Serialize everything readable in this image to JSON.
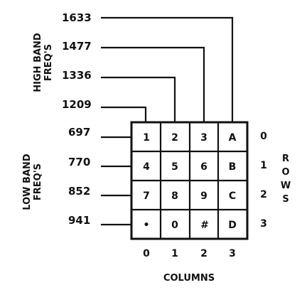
{
  "high_band": {
    "label_line1": "HIGH BAND",
    "label_line2": "FREQ'S",
    "freqs": [
      "1209",
      "1336",
      "1477",
      "1633"
    ]
  },
  "low_band": {
    "label_line1": "LOW BAND",
    "label_line2": "FREQ'S",
    "freqs": [
      "697",
      "770",
      "852",
      "941"
    ]
  },
  "keypad": {
    "keys": [
      [
        "1",
        "2",
        "3",
        "A"
      ],
      [
        "4",
        "5",
        "6",
        "B"
      ],
      [
        "7",
        "8",
        "9",
        "C"
      ],
      [
        "•",
        "0",
        "#",
        "D"
      ]
    ]
  },
  "rows": {
    "label": "ROWS",
    "letters": [
      "R",
      "O",
      "W",
      "S"
    ],
    "indices": [
      "0",
      "1",
      "2",
      "3"
    ]
  },
  "columns": {
    "label": "COLUMNS",
    "indices": [
      "0",
      "1",
      "2",
      "3"
    ]
  }
}
